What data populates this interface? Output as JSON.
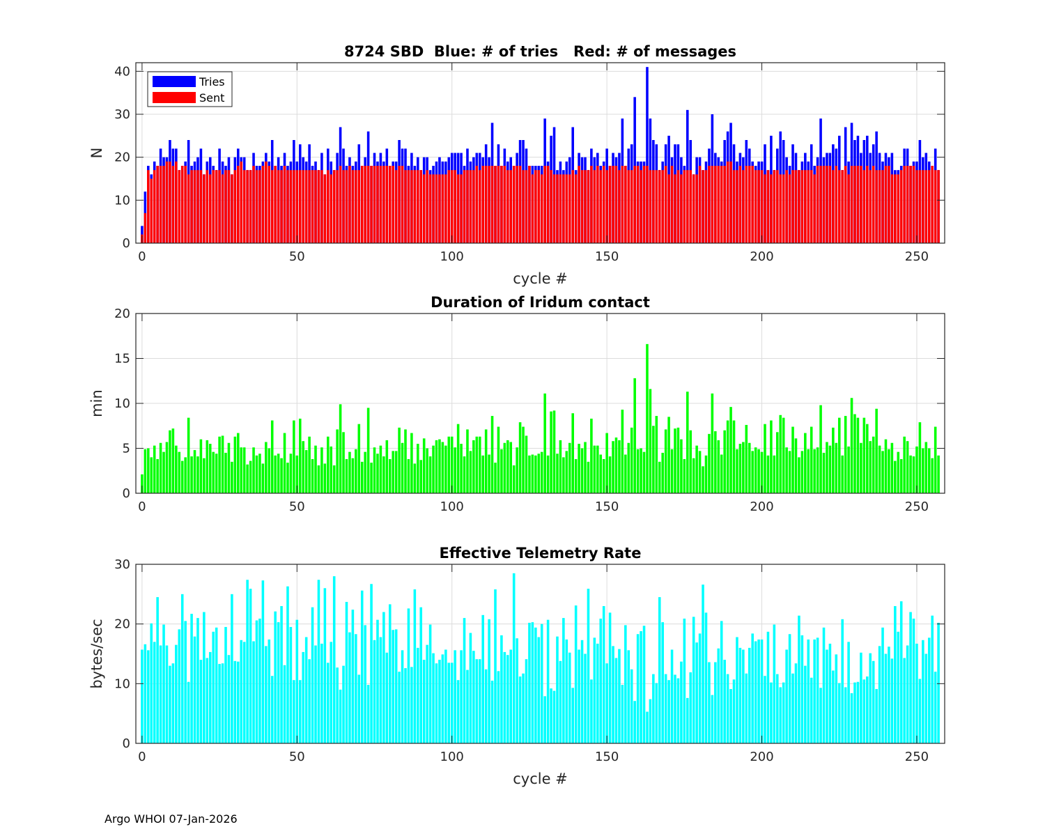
{
  "footer": "Argo WHOI 07-Jan-2026",
  "colors": {
    "tries": "#0000ff",
    "sent": "#ff0000",
    "duration": "#00ff00",
    "rate": "#00ffff",
    "grid": "#dcdcdc",
    "axis": "#262626"
  },
  "chart_data": [
    {
      "type": "bar",
      "stacked_overlay": true,
      "title": "8724 SBD  Blue: # of tries   Red: # of messages",
      "xlabel": "cycle #",
      "ylabel": "N",
      "xlim": [
        -2,
        259
      ],
      "ylim": [
        0,
        42
      ],
      "xticks": [
        0,
        50,
        100,
        150,
        200,
        250
      ],
      "yticks": [
        0,
        10,
        20,
        30,
        40
      ],
      "grid": true,
      "legend": {
        "placement": "top-left",
        "entries": [
          "Tries",
          "Sent"
        ]
      },
      "series": [
        {
          "name": "Tries",
          "color_key": "tries",
          "values": [
            4,
            12,
            18,
            16,
            19,
            18,
            22,
            20,
            20,
            24,
            22,
            22,
            17,
            18,
            19,
            24,
            18,
            19,
            20,
            22,
            16,
            19,
            20,
            18,
            17,
            22,
            19,
            18,
            20,
            16,
            20,
            22,
            20,
            20,
            17,
            17,
            21,
            18,
            18,
            19,
            21,
            19,
            24,
            18,
            20,
            18,
            21,
            18,
            19,
            24,
            19,
            23,
            20,
            19,
            23,
            18,
            19,
            17,
            21,
            16,
            22,
            19,
            17,
            21,
            27,
            22,
            18,
            20,
            18,
            19,
            23,
            18,
            20,
            26,
            18,
            21,
            19,
            21,
            19,
            22,
            18,
            19,
            19,
            24,
            22,
            22,
            18,
            21,
            18,
            20,
            17,
            20,
            20,
            17,
            18,
            19,
            20,
            19,
            19,
            20,
            21,
            21,
            21,
            21,
            18,
            22,
            19,
            20,
            21,
            21,
            20,
            23,
            20,
            28,
            18,
            23,
            18,
            22,
            19,
            20,
            18,
            21,
            24,
            24,
            22,
            18,
            18,
            18,
            18,
            18,
            29,
            19,
            25,
            27,
            17,
            19,
            17,
            19,
            20,
            27,
            17,
            21,
            20,
            20,
            17,
            22,
            20,
            21,
            18,
            19,
            22,
            18,
            21,
            20,
            21,
            29,
            18,
            22,
            23,
            34,
            19,
            19,
            19,
            41,
            29,
            24,
            23,
            17,
            19,
            23,
            25,
            20,
            23,
            23,
            20,
            18,
            31,
            24,
            16,
            20,
            20,
            17,
            19,
            22,
            30,
            21,
            20,
            19,
            24,
            26,
            28,
            23,
            19,
            21,
            20,
            24,
            22,
            19,
            18,
            19,
            19,
            23,
            17,
            25,
            17,
            22,
            26,
            24,
            20,
            18,
            23,
            21,
            17,
            19,
            21,
            19,
            23,
            18,
            20,
            29,
            20,
            21,
            21,
            23,
            22,
            25,
            17,
            27,
            19,
            28,
            24,
            25,
            21,
            24,
            25,
            21,
            23,
            26,
            21,
            19,
            21,
            20,
            21,
            17,
            17,
            18,
            22,
            22,
            18,
            19,
            19,
            24,
            20,
            21,
            19,
            18,
            22,
            17
          ]
        },
        {
          "name": "Sent",
          "color_key": "sent",
          "values": [
            2,
            7,
            17,
            15,
            17,
            18,
            18,
            18,
            19,
            19,
            18,
            19,
            17,
            18,
            18,
            16,
            17,
            17,
            17,
            17,
            16,
            17,
            16,
            17,
            17,
            17,
            16,
            17,
            17,
            16,
            17,
            18,
            19,
            17,
            17,
            17,
            18,
            17,
            17,
            18,
            19,
            18,
            17,
            18,
            17,
            17,
            18,
            17,
            17,
            17,
            17,
            17,
            17,
            17,
            17,
            17,
            17,
            17,
            17,
            16,
            17,
            16,
            17,
            17,
            18,
            17,
            17,
            18,
            17,
            17,
            17,
            18,
            18,
            18,
            18,
            18,
            18,
            18,
            18,
            18,
            18,
            18,
            17,
            18,
            18,
            17,
            17,
            17,
            17,
            17,
            17,
            16,
            17,
            16,
            16,
            16,
            16,
            16,
            16,
            17,
            17,
            17,
            16,
            16,
            17,
            17,
            17,
            17,
            18,
            17,
            18,
            18,
            18,
            18,
            18,
            18,
            18,
            18,
            17,
            17,
            18,
            18,
            18,
            17,
            17,
            18,
            16,
            17,
            17,
            16,
            18,
            18,
            17,
            16,
            16,
            16,
            16,
            16,
            16,
            17,
            16,
            18,
            17,
            17,
            17,
            18,
            17,
            18,
            17,
            18,
            17,
            18,
            18,
            18,
            17,
            18,
            18,
            17,
            17,
            18,
            18,
            17,
            18,
            18,
            17,
            17,
            17,
            17,
            17,
            18,
            16,
            18,
            16,
            17,
            16,
            17,
            17,
            17,
            16,
            16,
            18,
            17,
            17,
            18,
            18,
            18,
            18,
            18,
            18,
            19,
            19,
            17,
            17,
            18,
            17,
            18,
            18,
            18,
            17,
            17,
            17,
            16,
            17,
            16,
            17,
            17,
            16,
            16,
            17,
            16,
            17,
            17,
            17,
            17,
            17,
            17,
            17,
            16,
            18,
            18,
            18,
            18,
            18,
            17,
            18,
            17,
            17,
            18,
            16,
            18,
            18,
            18,
            18,
            17,
            18,
            17,
            18,
            17,
            17,
            17,
            18,
            18,
            16,
            16,
            16,
            17,
            18,
            18,
            18,
            18,
            17,
            17,
            17,
            17,
            17,
            18,
            17,
            17
          ]
        }
      ]
    },
    {
      "type": "bar",
      "title": "Duration of Iridum contact",
      "xlabel": "",
      "ylabel": "min",
      "xlim": [
        -2,
        259
      ],
      "ylim": [
        0,
        20
      ],
      "xticks": [
        0,
        50,
        100,
        150,
        200,
        250
      ],
      "yticks": [
        0,
        5,
        10,
        15,
        20
      ],
      "grid": true,
      "series": [
        {
          "name": "Duration",
          "color_key": "duration",
          "values": [
            2.1,
            4.9,
            5.0,
            4.0,
            5.3,
            3.8,
            5.6,
            4.6,
            5.7,
            7.0,
            7.2,
            5.3,
            4.6,
            3.6,
            4.0,
            8.4,
            4.1,
            4.8,
            4.1,
            6.0,
            3.9,
            5.9,
            5.5,
            4.6,
            4.4,
            6.3,
            6.4,
            4.5,
            5.6,
            3.5,
            6.3,
            6.7,
            5.1,
            5.1,
            3.2,
            3.6,
            5.1,
            4.2,
            4.4,
            3.3,
            5.7,
            5.0,
            8.1,
            4.2,
            4.4,
            3.9,
            6.7,
            3.4,
            4.4,
            8.1,
            4.2,
            8.3,
            5.8,
            4.8,
            6.3,
            3.8,
            5.3,
            3.1,
            5.1,
            3.3,
            6.3,
            5.2,
            3.1,
            7.1,
            9.9,
            6.8,
            3.8,
            4.6,
            3.9,
            4.9,
            7.7,
            3.5,
            4.6,
            9.5,
            3.4,
            5.1,
            4.4,
            5.3,
            4.1,
            5.9,
            3.8,
            4.7,
            4.7,
            7.3,
            5.6,
            7.1,
            3.8,
            6.7,
            3.3,
            5.5,
            3.7,
            6.1,
            5.0,
            4.1,
            5.3,
            5.9,
            6.0,
            5.7,
            5.3,
            6.3,
            6.3,
            5.1,
            7.7,
            5.5,
            4.1,
            7.1,
            4.7,
            5.9,
            6.3,
            6.3,
            4.2,
            7.1,
            4.3,
            8.6,
            3.4,
            7.4,
            4.9,
            5.6,
            5.9,
            5.7,
            3.1,
            5.1,
            7.9,
            7.4,
            6.4,
            4.2,
            4.3,
            4.2,
            4.4,
            4.6,
            11.1,
            4.2,
            9.1,
            9.2,
            4.4,
            5.9,
            4.0,
            4.7,
            5.6,
            8.9,
            3.8,
            5.5,
            5.0,
            5.7,
            3.5,
            8.3,
            5.3,
            5.3,
            4.3,
            3.8,
            6.7,
            4.1,
            5.8,
            6.2,
            5.9,
            9.3,
            4.3,
            5.6,
            7.3,
            12.8,
            4.9,
            5.0,
            4.6,
            16.6,
            11.6,
            7.5,
            8.6,
            3.5,
            4.5,
            7.1,
            8.5,
            4.9,
            7.2,
            7.3,
            6.0,
            3.8,
            11.3,
            7.0,
            3.9,
            5.3,
            4.7,
            3.0,
            4.2,
            6.6,
            11.1,
            6.9,
            5.9,
            4.3,
            7.0,
            8.1,
            9.6,
            8.1,
            4.9,
            5.5,
            5.7,
            7.6,
            5.6,
            4.7,
            5.1,
            4.9,
            4.6,
            7.7,
            4.2,
            8.1,
            4.2,
            6.8,
            8.7,
            8.4,
            5.1,
            4.7,
            7.4,
            6.1,
            4.0,
            4.7,
            6.7,
            4.9,
            7.4,
            4.9,
            5.1,
            9.8,
            4.5,
            5.7,
            5.3,
            7.3,
            5.6,
            8.4,
            4.2,
            8.6,
            5.2,
            10.6,
            8.8,
            8.4,
            5.6,
            8.4,
            7.7,
            5.8,
            6.3,
            9.4,
            5.3,
            4.7,
            6.0,
            4.9,
            5.6,
            3.6,
            4.6,
            3.8,
            6.3,
            5.8,
            4.2,
            4.1,
            5.2,
            7.9,
            5.0,
            5.7,
            5.0,
            3.9,
            7.4,
            4.2
          ]
        }
      ]
    },
    {
      "type": "bar",
      "title": "Effective Telemetry Rate",
      "xlabel": "cycle #",
      "ylabel": "bytes/sec",
      "xlim": [
        -2,
        259
      ],
      "ylim": [
        0,
        30
      ],
      "xticks": [
        0,
        50,
        100,
        150,
        200,
        250
      ],
      "yticks": [
        0,
        10,
        20,
        30
      ],
      "grid": true,
      "series": [
        {
          "name": "Rate",
          "color_key": "rate",
          "values": [
            15.7,
            16.6,
            15.6,
            20.1,
            17.0,
            24.5,
            16.4,
            19.9,
            16.4,
            13.0,
            13.4,
            16.5,
            19.1,
            25.0,
            20.5,
            10.3,
            21.7,
            17.9,
            21.0,
            14.0,
            22.0,
            14.3,
            15.3,
            18.7,
            19.4,
            13.3,
            13.4,
            19.5,
            14.8,
            25.0,
            13.8,
            13.7,
            17.3,
            17.0,
            27.4,
            25.9,
            17.1,
            20.6,
            20.9,
            27.3,
            16.3,
            17.4,
            11.3,
            22.1,
            20.3,
            23.0,
            13.1,
            26.3,
            19.5,
            10.6,
            20.7,
            10.6,
            15.3,
            17.8,
            14.1,
            22.8,
            16.4,
            27.4,
            16.7,
            26.0,
            13.5,
            17.0,
            28.0,
            12.7,
            9.0,
            13.0,
            23.7,
            18.6,
            22.4,
            18.3,
            11.5,
            25.6,
            19.8,
            9.8,
            26.7,
            17.3,
            20.7,
            17.8,
            22.0,
            15.2,
            23.3,
            19.0,
            19.1,
            12.0,
            15.6,
            12.6,
            22.6,
            12.8,
            25.8,
            16.0,
            22.8,
            14.0,
            16.5,
            19.9,
            15.1,
            13.4,
            14.0,
            14.9,
            15.7,
            13.5,
            13.5,
            15.6,
            10.6,
            15.6,
            21.0,
            12.3,
            18.5,
            15.5,
            14.1,
            14.1,
            21.5,
            12.4,
            20.8,
            10.5,
            25.8,
            12.1,
            18.1,
            15.3,
            14.8,
            15.7,
            28.5,
            17.6,
            11.2,
            11.7,
            14.1,
            20.2,
            20.3,
            19.4,
            17.8,
            20.0,
            7.9,
            20.7,
            9.2,
            8.8,
            17.9,
            13.8,
            21.0,
            17.4,
            15.2,
            9.3,
            23.1,
            15.7,
            17.3,
            15.0,
            25.9,
            10.7,
            17.7,
            16.7,
            20.9,
            23.0,
            13.4,
            21.9,
            16.3,
            14.3,
            15.8,
            9.8,
            19.8,
            15.6,
            12.4,
            7.1,
            18.3,
            18.8,
            19.7,
            5.3,
            7.4,
            11.6,
            10.1,
            24.5,
            20.3,
            11.6,
            10.6,
            15.7,
            11.5,
            10.9,
            13.7,
            20.9,
            7.6,
            11.9,
            21.2,
            16.9,
            18.4,
            26.6,
            21.9,
            13.6,
            8.1,
            13.6,
            15.9,
            20.5,
            14.0,
            11.6,
            9.1,
            10.7,
            17.8,
            16.0,
            15.7,
            11.7,
            16.0,
            18.4,
            17.1,
            17.4,
            17.4,
            11.3,
            18.7,
            10.2,
            19.9,
            11.6,
            9.4,
            10.2,
            15.7,
            18.3,
            11.7,
            13.4,
            21.4,
            18.1,
            13.0,
            17.4,
            11.0,
            17.4,
            17.7,
            9.3,
            19.4,
            15.7,
            16.7,
            12.2,
            14.9,
            10.1,
            20.8,
            9.4,
            17.0,
            8.4,
            10.2,
            10.3,
            15.2,
            10.7,
            11.2,
            15.1,
            13.8,
            9.1,
            16.3,
            19.4,
            15.0,
            16.2,
            14.2,
            23.0,
            18.7,
            23.8,
            14.3,
            16.4,
            22.0,
            20.9,
            16.7,
            10.8,
            17.3,
            15.0,
            17.7,
            21.4,
            12.0,
            20.2
          ]
        }
      ]
    }
  ]
}
